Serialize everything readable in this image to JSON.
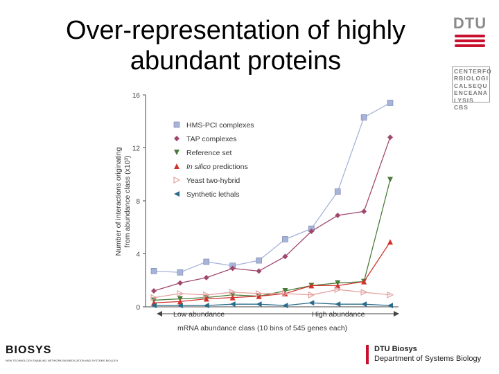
{
  "slide": {
    "title_line1": "Over-representation of highly",
    "title_line2": "abundant proteins"
  },
  "logos": {
    "dtu_top": "DTU",
    "cbs_box_lines": [
      "CENTERFO",
      "RBIOLOGI",
      "CALSEQU",
      "ENCEANA",
      "LYSIS CBS"
    ],
    "biosys_word": "BIOSYS",
    "biosys_tagline": "NEW TECHNOLOGY ENABLING NETWORK BIOMEDICATION AND SYSTEMS BIOLOGY",
    "dtu_footer_line1": "DTU Biosys",
    "dtu_footer_line2": "Department of Systems Biology",
    "accent_color": "#c8102e"
  },
  "chart_data": {
    "type": "line",
    "ylabel_line1": "Number of interactions originating",
    "ylabel_line2": "from abundance class (x10³)",
    "xlabel": "mRNA abundance class (10 bins of 545 genes each)",
    "x_low_label": "Low abundance",
    "x_high_label": "High abundance",
    "x": [
      1,
      2,
      3,
      4,
      5,
      6,
      7,
      8,
      9,
      10
    ],
    "ylim": [
      0,
      16
    ],
    "yticks": [
      0,
      4,
      8,
      12,
      16
    ],
    "legend_position": "top-left",
    "series": [
      {
        "name": "HMS-PCI complexes",
        "color": "#a7b4d8",
        "marker": "square",
        "values": [
          2.7,
          2.6,
          3.4,
          3.1,
          3.5,
          5.1,
          5.9,
          8.7,
          14.3,
          15.4
        ]
      },
      {
        "name": "TAP complexes",
        "color": "#a0476e",
        "marker": "diamond",
        "values": [
          1.2,
          1.8,
          2.2,
          2.9,
          2.7,
          3.8,
          5.7,
          6.9,
          7.2,
          12.8
        ]
      },
      {
        "name": "Reference set",
        "color": "#4a7a3a",
        "marker": "triangle-down",
        "values": [
          0.5,
          0.6,
          0.7,
          0.9,
          0.8,
          1.2,
          1.6,
          1.8,
          1.9,
          9.6
        ]
      },
      {
        "name": "In silico predictions",
        "color": "#d0342c",
        "marker": "triangle-up",
        "values": [
          0.3,
          0.4,
          0.6,
          0.7,
          0.8,
          1.0,
          1.6,
          1.6,
          1.9,
          4.9
        ]
      },
      {
        "name": "Yeast two-hybrid",
        "color": "#e3a2a0",
        "marker": "triangle-right",
        "values": [
          0.7,
          1.0,
          0.9,
          1.1,
          1.0,
          1.0,
          0.9,
          1.3,
          1.1,
          0.9
        ]
      },
      {
        "name": "Synthetic lethals",
        "color": "#2a6b8a",
        "marker": "triangle-left",
        "values": [
          0.1,
          0.1,
          0.1,
          0.2,
          0.2,
          0.1,
          0.3,
          0.2,
          0.2,
          0.1
        ]
      }
    ]
  }
}
